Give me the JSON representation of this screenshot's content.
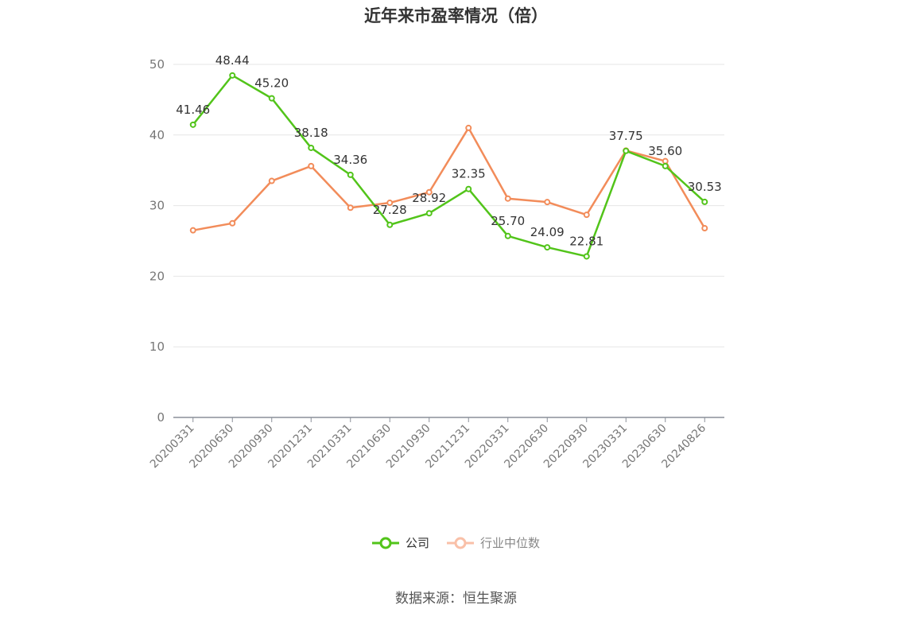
{
  "chart_data": {
    "type": "line",
    "title": "近年来市盈率情况（倍）",
    "categories": [
      "20200331",
      "20200630",
      "20200930",
      "20201231",
      "20210331",
      "20210630",
      "20210930",
      "20211231",
      "20220331",
      "20220630",
      "20220930",
      "20230331",
      "20230630",
      "20240826"
    ],
    "series": [
      {
        "name": "公司",
        "color": "#52c41a",
        "values": [
          41.46,
          48.44,
          45.2,
          38.18,
          34.36,
          27.28,
          28.92,
          32.35,
          25.7,
          24.09,
          22.81,
          37.75,
          35.6,
          30.53
        ],
        "labels": [
          "41.46",
          "48.44",
          "45.20",
          "38.18",
          "34.36",
          "27.28",
          "28.92",
          "32.35",
          "25.70",
          "24.09",
          "22.81",
          "37.75",
          "35.60",
          "30.53"
        ]
      },
      {
        "name": "行业中位数",
        "color": "#f28c5a",
        "values": [
          26.5,
          27.5,
          33.5,
          35.6,
          29.7,
          30.4,
          31.9,
          41.0,
          31.0,
          30.5,
          28.7,
          37.8,
          36.3,
          26.8
        ]
      }
    ],
    "ylim": [
      0,
      50
    ],
    "yticks": [
      "0",
      "10",
      "20",
      "30",
      "40",
      "50"
    ],
    "grid": true,
    "legend_position": "bottom"
  },
  "source": "数据来源：恒生聚源"
}
